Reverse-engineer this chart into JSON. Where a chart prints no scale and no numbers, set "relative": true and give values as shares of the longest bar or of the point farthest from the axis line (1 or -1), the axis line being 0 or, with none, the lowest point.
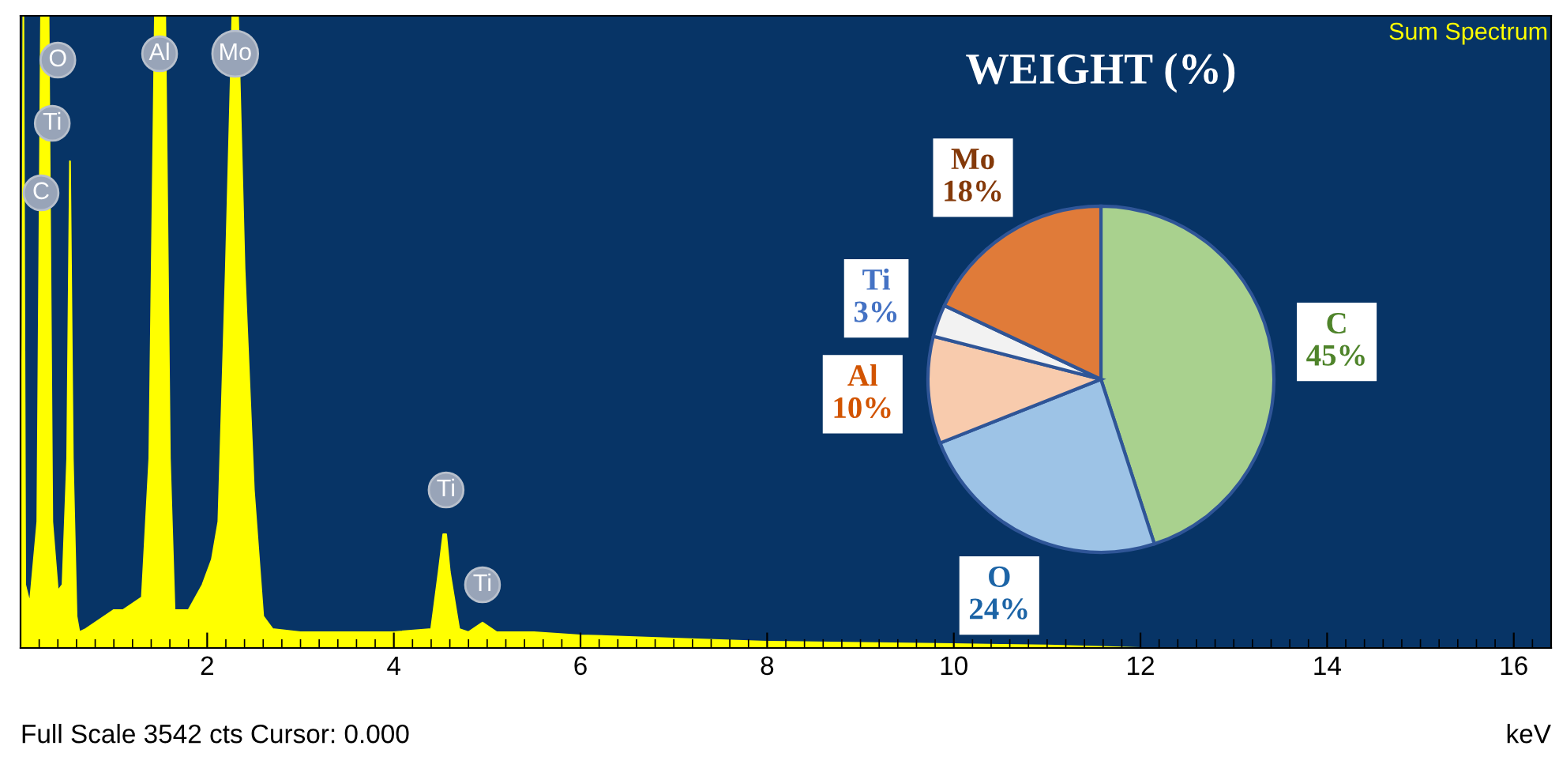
{
  "chart_data": [
    {
      "type": "area",
      "relative": true,
      "xlabel": "keV",
      "xlim": [
        0,
        16.4
      ],
      "xticks": [
        2,
        4,
        6,
        8,
        10,
        12,
        14,
        16
      ],
      "grid": false,
      "series": [
        {
          "color": "#ffff00",
          "x": [
            0,
            0.02,
            0.03,
            0.05,
            0.1,
            0.18,
            0.22,
            0.3,
            0.34,
            0.4,
            0.45,
            0.5,
            0.53,
            0.56,
            0.6,
            0.63,
            0.7,
            0.8,
            0.9,
            1.0,
            1.1,
            1.2,
            1.3,
            1.38,
            1.44,
            1.49,
            1.55,
            1.6,
            1.65,
            1.8,
            1.95,
            2.05,
            2.12,
            2.2,
            2.27,
            2.33,
            2.4,
            2.5,
            2.6,
            2.7,
            3.0,
            3.5,
            4.0,
            4.4,
            4.48,
            4.53,
            4.56,
            4.6,
            4.7,
            4.8,
            4.95,
            5.1,
            5.5,
            6.0,
            7.0,
            8.0,
            9.0,
            10.0,
            10.5,
            11.0,
            11.5,
            12.0,
            16.4
          ],
          "values": [
            0.05,
            0.5,
            1.0,
            0.1,
            0.07,
            0.2,
            1.0,
            1.0,
            0.2,
            0.09,
            0.1,
            0.3,
            0.77,
            0.3,
            0.05,
            0.025,
            0.03,
            0.04,
            0.05,
            0.06,
            0.06,
            0.07,
            0.08,
            0.3,
            1.0,
            1.0,
            1.0,
            0.3,
            0.06,
            0.06,
            0.1,
            0.14,
            0.2,
            0.6,
            1.0,
            1.0,
            0.6,
            0.25,
            0.05,
            0.03,
            0.025,
            0.025,
            0.025,
            0.03,
            0.12,
            0.18,
            0.18,
            0.12,
            0.03,
            0.025,
            0.04,
            0.025,
            0.025,
            0.02,
            0.015,
            0.01,
            0.008,
            0.006,
            0.005,
            0.004,
            0.002,
            0,
            0
          ]
        }
      ],
      "annotations": [
        {
          "text": "C",
          "x": 0.22,
          "y": 0.72
        },
        {
          "text": "Ti",
          "x": 0.34,
          "y": 0.83
        },
        {
          "text": "O",
          "x": 0.4,
          "y": 0.93
        },
        {
          "text": "Al",
          "x": 1.49,
          "y": 0.94
        },
        {
          "text": "Mo",
          "x": 2.3,
          "y": 0.94
        },
        {
          "text": "Ti",
          "x": 4.56,
          "y": 0.25
        },
        {
          "text": "Ti",
          "x": 4.95,
          "y": 0.1
        },
        "Sum Spectrum",
        "Full Scale 3542 cts Cursor: 0.000"
      ]
    },
    {
      "type": "pie",
      "title": "WEIGHT (%)",
      "categories": [
        "C",
        "O",
        "Al",
        "Ti",
        "Mo"
      ],
      "values": [
        45,
        24,
        10,
        3,
        18
      ],
      "colors": [
        "#a9d18e",
        "#9dc3e6",
        "#f8cbad",
        "#f2f2f2",
        "#e07b39"
      ],
      "value_labels": [
        "45%",
        "24%",
        "10%",
        "3%",
        "18%"
      ],
      "legend": false
    }
  ]
}
